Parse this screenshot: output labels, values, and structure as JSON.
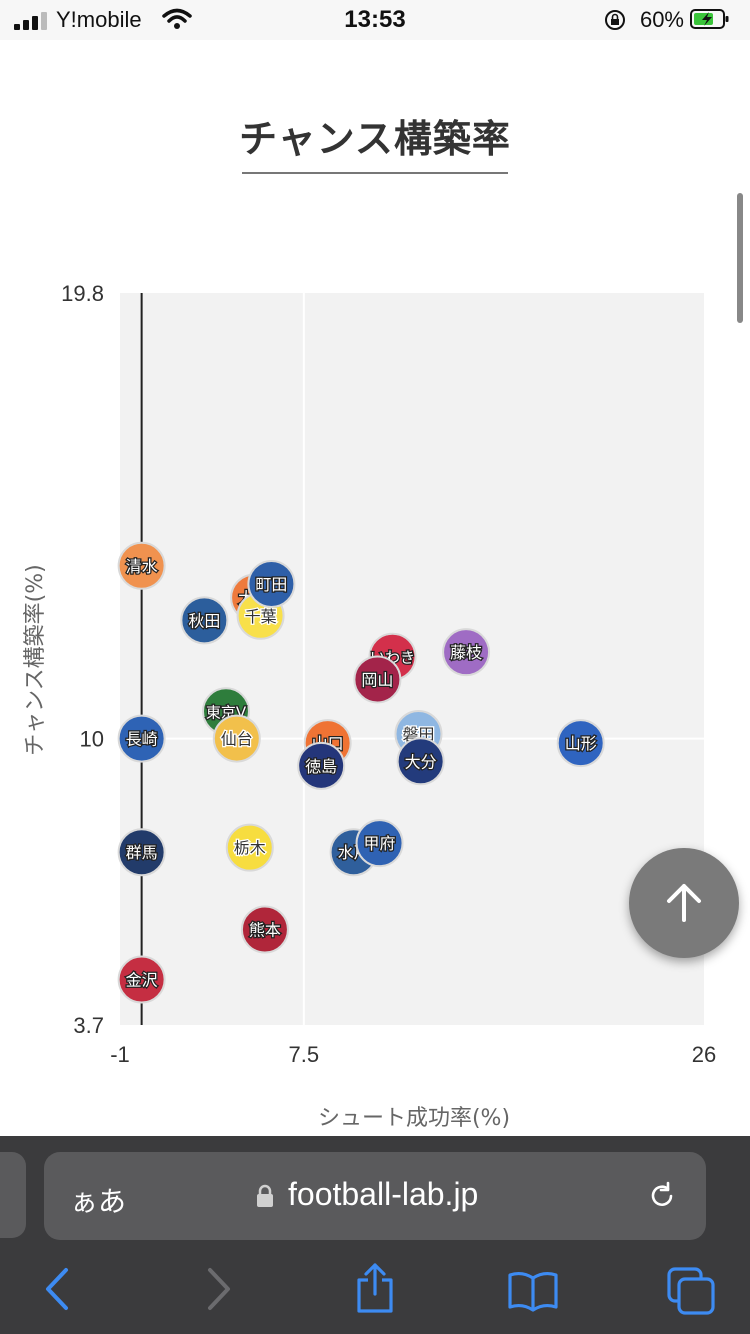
{
  "status": {
    "carrier": "Y!mobile",
    "time": "13:53",
    "battery_text": "60%",
    "signal_icon": "cellular-signal-icon",
    "wifi_icon": "wifi-icon",
    "orientation_lock_icon": "orientation-lock-icon",
    "battery_icon": "battery-charging-icon"
  },
  "page": {
    "title": "チャンス構築率"
  },
  "chart_data": {
    "type": "scatter",
    "title": "",
    "xlabel": "シュート成功率(%)",
    "ylabel": "チャンス構築率(%)",
    "xlim": [
      -1,
      26
    ],
    "ylim": [
      3.7,
      19.8
    ],
    "x_ticks": [
      "-1",
      "7.5",
      "26"
    ],
    "y_ticks": [
      "19.8",
      "10",
      "3.7"
    ],
    "grid": true,
    "reference_lines": {
      "x": 7.5,
      "y": 10
    },
    "mean_line_x": 0,
    "points": [
      {
        "label": "清水",
        "x": 0.0,
        "y": 13.8,
        "color": "#f0924f"
      },
      {
        "label": "大宮",
        "x": 5.2,
        "y": 13.1,
        "color": "#ee7a3c"
      },
      {
        "label": "千葉",
        "x": 5.5,
        "y": 12.7,
        "color": "#f8e04a"
      },
      {
        "label": "町田",
        "x": 6.0,
        "y": 13.4,
        "color": "#2e5fa8"
      },
      {
        "label": "秋田",
        "x": 2.9,
        "y": 12.6,
        "color": "#2c5e9c"
      },
      {
        "label": "いわき",
        "x": 11.6,
        "y": 11.8,
        "color": "#d3304b"
      },
      {
        "label": "藤枝",
        "x": 15.0,
        "y": 11.9,
        "color": "#9f6cc4"
      },
      {
        "label": "岡山",
        "x": 10.9,
        "y": 11.3,
        "color": "#a3244a"
      },
      {
        "label": "東京V",
        "x": 3.9,
        "y": 10.6,
        "color": "#2e7d3c"
      },
      {
        "label": "長崎",
        "x": 0.0,
        "y": 10.0,
        "color": "#2e63b5"
      },
      {
        "label": "仙台",
        "x": 4.4,
        "y": 10.0,
        "color": "#f2c04b"
      },
      {
        "label": "山口",
        "x": 8.6,
        "y": 9.9,
        "color": "#ef7334"
      },
      {
        "label": "磐田",
        "x": 12.8,
        "y": 10.1,
        "color": "#8fb7e2"
      },
      {
        "label": "山形",
        "x": 20.3,
        "y": 9.9,
        "color": "#2f64c0"
      },
      {
        "label": "徳島",
        "x": 8.3,
        "y": 9.4,
        "color": "#24367a"
      },
      {
        "label": "大分",
        "x": 12.9,
        "y": 9.5,
        "color": "#233b7c"
      },
      {
        "label": "群馬",
        "x": 0.0,
        "y": 7.5,
        "color": "#223b6a"
      },
      {
        "label": "栃木",
        "x": 5.0,
        "y": 7.6,
        "color": "#f7dd3f"
      },
      {
        "label": "水戸",
        "x": 9.8,
        "y": 7.5,
        "color": "#2f5f9c"
      },
      {
        "label": "甲府",
        "x": 11.0,
        "y": 7.7,
        "color": "#2f62b3"
      },
      {
        "label": "熊本",
        "x": 5.7,
        "y": 5.8,
        "color": "#b0263a"
      },
      {
        "label": "金沢",
        "x": 0.0,
        "y": 4.7,
        "color": "#c52e42"
      }
    ]
  },
  "fab": {
    "icon": "arrow-up-icon"
  },
  "browser": {
    "aa_label": "ぁあ",
    "url": "football-lab.jp",
    "lock_icon": "lock-icon",
    "reload_icon": "reload-icon",
    "toolbar_icons": [
      "back-icon",
      "forward-icon",
      "share-icon",
      "bookmarks-icon",
      "tabs-icon"
    ]
  }
}
